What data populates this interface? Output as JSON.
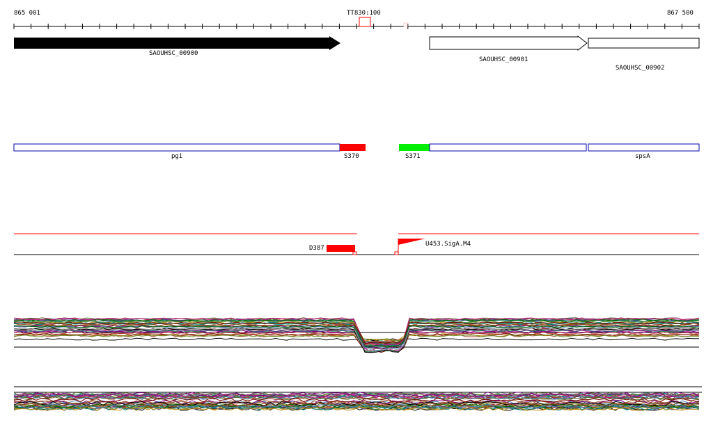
{
  "ruler": {
    "start_label": "865 001",
    "end_label": "867 500",
    "marker_label": "TT830:100"
  },
  "genes": [
    {
      "name": "SAOUHSC_00900",
      "strand": "forward",
      "fill": "#000000"
    },
    {
      "name": "SAOUHSC_00901",
      "strand": "forward",
      "fill": "#ffffff"
    },
    {
      "name": "SAOUHSC_00902",
      "strand": "none",
      "fill": "#ffffff"
    }
  ],
  "operons": [
    {
      "name": "pgi",
      "color": "#0000aa"
    },
    {
      "name": "S370",
      "color": "#ff0000"
    },
    {
      "name": "S371",
      "color": "#00ee00"
    },
    {
      "name": "spsA",
      "color": "#0000aa"
    }
  ],
  "features": {
    "D387": {
      "label": "D387",
      "color": "#ff0000"
    },
    "U453": {
      "label": "U453.SigA.M4",
      "color": "#ff0000"
    }
  },
  "colors": {
    "axis": "#000000",
    "accent": "#ff0000",
    "operon_outline": "#0000aa",
    "highlight": "#00ee00"
  },
  "profile_palette": [
    "#7a0000",
    "#006400",
    "#8b4513",
    "#b8860b",
    "#556b2f",
    "#800080",
    "#4682b4",
    "#a0522d",
    "#2e8b57",
    "#cd5c5c",
    "#6b8e23",
    "#483d8b",
    "#000000",
    "#999999",
    "#c71585",
    "#008b8b"
  ]
}
